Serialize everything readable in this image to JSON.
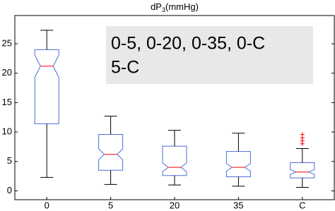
{
  "chart_data": {
    "type": "box",
    "title": "dP",
    "title_subscript": "3",
    "title_suffix": "(mmHg)",
    "categories": [
      "0",
      "5",
      "20",
      "35",
      "C"
    ],
    "boxes": [
      {
        "whisker_low": 2.3,
        "q1": 11.4,
        "median": 21.2,
        "q3": 24.0,
        "whisker_high": 27.3,
        "outliers": []
      },
      {
        "whisker_low": 1.1,
        "q1": 3.5,
        "median": 6.2,
        "q3": 9.6,
        "whisker_high": 12.7,
        "outliers": []
      },
      {
        "whisker_low": 1.0,
        "q1": 2.6,
        "median": 4.0,
        "q3": 7.6,
        "whisker_high": 10.3,
        "outliers": []
      },
      {
        "whisker_low": 0.8,
        "q1": 2.4,
        "median": 4.0,
        "q3": 6.7,
        "whisker_high": 9.8,
        "outliers": []
      },
      {
        "whisker_low": 0.6,
        "q1": 2.2,
        "median": 3.2,
        "q3": 4.8,
        "whisker_high": 7.2,
        "outliers": [
          8.0,
          8.5,
          9.0,
          9.6
        ]
      }
    ],
    "box_color": "#4a6fd8",
    "median_color": "#ff0000",
    "whisker_color": "#000000",
    "outlier_color": "#ff0000",
    "notched": true,
    "ylim": [
      -1.5,
      29.8
    ],
    "yticks": [
      0,
      5,
      10,
      15,
      20,
      25
    ],
    "annotation": [
      "0-5, 0-20, 0-35, 0-C",
      "5-C"
    ]
  }
}
